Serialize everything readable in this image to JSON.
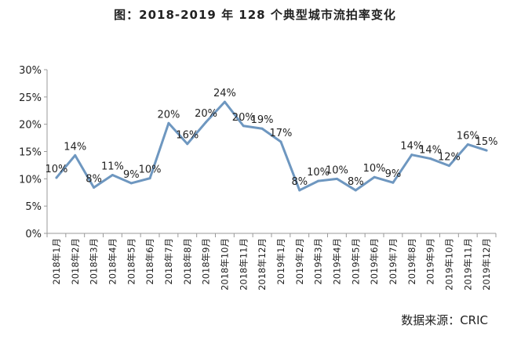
{
  "chart_data": {
    "type": "line",
    "title": "图：2018-2019 年 128 个典型城市流拍率变化",
    "source": "数据来源：CRIC",
    "ylim": [
      0,
      30
    ],
    "yticks": [
      "0%",
      "5%",
      "10%",
      "15%",
      "20%",
      "25%",
      "30%"
    ],
    "grid": false,
    "categories": [
      "2018年1月",
      "2018年2月",
      "2018年3月",
      "2018年4月",
      "2018年5月",
      "2018年6月",
      "2018年7月",
      "2018年8月",
      "2018年9月",
      "2018年10月",
      "2018年11月",
      "2018年12月",
      "2019年1月",
      "2019年2月",
      "2019年3月",
      "2019年4月",
      "2019年5月",
      "2019年6月",
      "2019年7月",
      "2019年8月",
      "2019年9月",
      "2019年10月",
      "2019年11月",
      "2019年12月"
    ],
    "series": [
      {
        "color": "#6e97c0",
        "values": [
          10.2,
          14.3,
          8.4,
          10.7,
          9.2,
          10.1,
          20.2,
          16.4,
          20.4,
          24.1,
          19.7,
          19.2,
          16.8,
          7.9,
          9.6,
          10.0,
          7.9,
          10.3,
          9.3,
          14.4,
          13.7,
          12.4,
          16.3,
          15.2
        ],
        "labels": [
          "10%",
          "14%",
          "8%",
          "11%",
          "9%",
          "10%",
          "20%",
          "16%",
          "20%",
          "24%",
          "20%",
          "19%",
          "17%",
          "8%",
          "10%",
          "10%",
          "8%",
          "10%",
          "9%",
          "14%",
          "14%",
          "12%",
          "16%",
          "15%"
        ]
      }
    ]
  }
}
